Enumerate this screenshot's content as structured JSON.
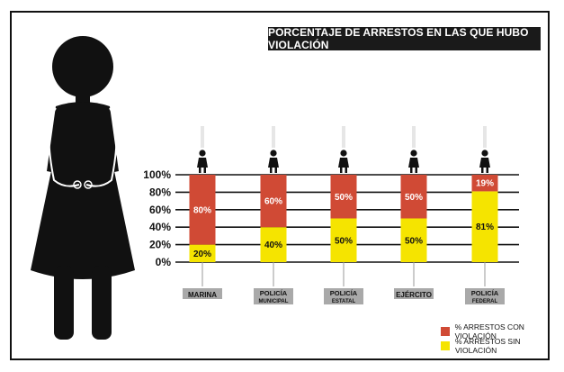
{
  "title": "PORCENTAJE DE ARRESTOS EN LAS QUE HUBO VIOLACIÓN",
  "colors": {
    "con": "#d04a35",
    "sin": "#f5e400",
    "figure": "#111111",
    "label_bg": "#a9a9a9"
  },
  "legend": {
    "con": "% ARRESTOS CON VIOLACIÓN",
    "sin": "% ARRESTOS SIN VIOLACIÓN"
  },
  "chart_data": {
    "type": "bar",
    "stacked": true,
    "categories": [
      "MARINA",
      "POLICÍA MUNICIPAL",
      "POLICÍA ESTATAL",
      "EJÉRCITO",
      "POLICÍA FEDERAL"
    ],
    "category_labels": [
      [
        "MARINA"
      ],
      [
        "POLICÍA",
        "MUNICIPAL"
      ],
      [
        "POLICÍA",
        "ESTATAL"
      ],
      [
        "EJÉRCITO"
      ],
      [
        "POLICÍA",
        "FEDERAL"
      ]
    ],
    "series": [
      {
        "name": "% ARRESTOS SIN VIOLACIÓN",
        "values": [
          20,
          40,
          50,
          50,
          81
        ],
        "labels": [
          "20%",
          "40%",
          "50%",
          "50%",
          "81%"
        ]
      },
      {
        "name": "% ARRESTOS CON VIOLACIÓN",
        "values": [
          80,
          60,
          50,
          50,
          19
        ],
        "labels": [
          "80%",
          "60%",
          "50%",
          "50%",
          "19%"
        ]
      }
    ],
    "y_ticks": [
      "0%",
      "20%",
      "40%",
      "60%",
      "80%",
      "100%"
    ],
    "y_tick_values": [
      0,
      20,
      40,
      60,
      80,
      100
    ],
    "ylim": [
      0,
      100
    ],
    "legend_position": "bottom-right"
  }
}
